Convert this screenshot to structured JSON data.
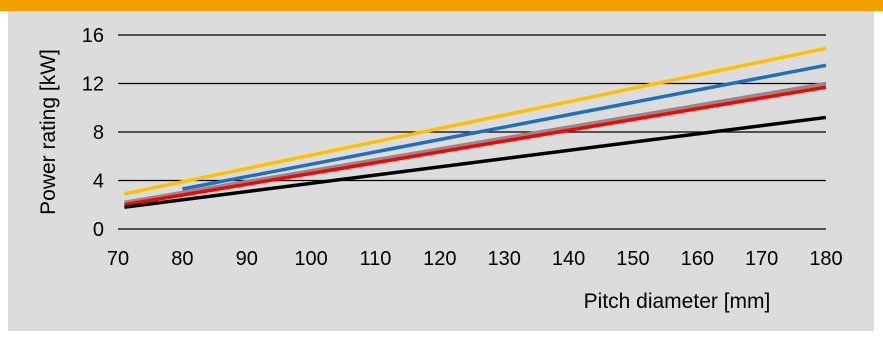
{
  "chart_data": {
    "type": "line",
    "title": "",
    "xlabel": "Pitch diameter [mm]",
    "ylabel": "Power rating [kW]",
    "xlim": [
      70,
      180
    ],
    "ylim": [
      0,
      16
    ],
    "x_ticks": [
      "70",
      "80",
      "90",
      "100",
      "110",
      "120",
      "130",
      "140",
      "150",
      "160",
      "170",
      "180"
    ],
    "y_ticks": [
      "0",
      "4",
      "8",
      "12",
      "16"
    ],
    "grid": "horizontal",
    "legend": "none",
    "series": [
      {
        "color": "#ffc000",
        "x": [
          71,
          180
        ],
        "y": [
          2.9,
          14.9
        ]
      },
      {
        "color": "#1f6fbf",
        "x": [
          80,
          180
        ],
        "y": [
          3.3,
          13.5
        ]
      },
      {
        "color": "#8c8c8c",
        "x": [
          71,
          180
        ],
        "y": [
          2.2,
          12.0
        ]
      },
      {
        "color": "#ff0000",
        "x": [
          71,
          180
        ],
        "y": [
          2.0,
          11.7
        ]
      },
      {
        "color": "#000000",
        "x": [
          71,
          180
        ],
        "y": [
          1.8,
          9.2
        ]
      }
    ]
  },
  "colors": {
    "accent_bar": "#f4a100",
    "panel_bg": "#dcdcdc"
  }
}
